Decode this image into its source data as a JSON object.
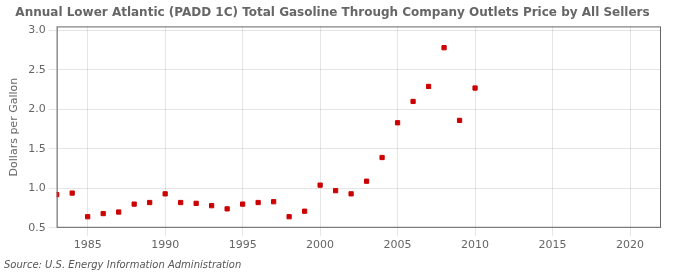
{
  "chart_data": {
    "type": "scatter",
    "title": "Annual Lower Atlantic (PADD 1C) Total Gasoline Through Company Outlets Price by All Sellers",
    "ylabel": "Dollars per Gallon",
    "source": "Source: U.S. Energy Information Administration",
    "color": "#cc0000",
    "marker": "square",
    "grid": true,
    "xlim": [
      1983,
      2022
    ],
    "ylim": [
      0.5,
      3.05
    ],
    "xticks": [
      1985,
      1990,
      1995,
      2000,
      2005,
      2010,
      2015,
      2020
    ],
    "yticks": [
      0.5,
      {
        "value": 1,
        "label": "1.0"
      },
      1.5,
      {
        "value": 2,
        "label": "2.0"
      },
      2.5,
      {
        "value": 3,
        "label": "3.0"
      }
    ],
    "x": [
      1983,
      1984,
      1985,
      1986,
      1987,
      1988,
      1989,
      1990,
      1991,
      1992,
      1993,
      1994,
      1995,
      1996,
      1997,
      1998,
      1999,
      2000,
      2001,
      2002,
      2003,
      2004,
      2005,
      2006,
      2007,
      2008,
      2009,
      2010
    ],
    "values": [
      0.92,
      0.94,
      0.64,
      0.68,
      0.7,
      0.8,
      0.82,
      0.93,
      0.82,
      0.81,
      0.78,
      0.74,
      0.8,
      0.82,
      0.83,
      0.64,
      0.71,
      1.04,
      0.97,
      0.93,
      1.09,
      1.39,
      1.83,
      2.1,
      2.29,
      2.78,
      1.86,
      2.27
    ]
  }
}
